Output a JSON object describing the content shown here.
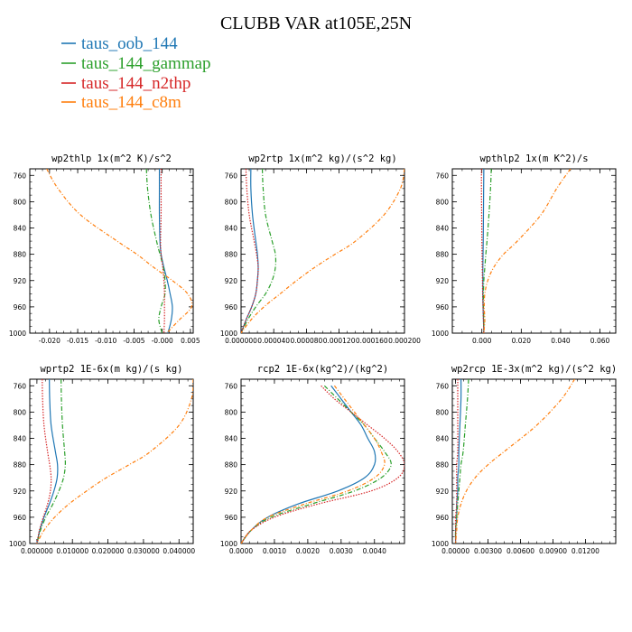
{
  "figure_title": "CLUBB VAR at105E,25N",
  "legend": [
    {
      "name": "taus_oob_144",
      "color": "#1f77b4"
    },
    {
      "name": "taus_144_gammap",
      "color": "#2ca02c"
    },
    {
      "name": "taus_144_n2thp",
      "color": "#d62728"
    },
    {
      "name": "taus_144_c8m",
      "color": "#ff7f0e"
    }
  ],
  "chart_data": [
    {
      "type": "line",
      "title": "wp2thlp  1x(m^2 K)/s^2",
      "xlim": [
        -0.0235,
        0.0055
      ],
      "xticks": [
        -0.02,
        -0.015,
        -0.01,
        -0.005,
        0.0,
        0.005
      ],
      "xticklabels": [
        "-0.020",
        "-0.015",
        "-0.010",
        "-0.005",
        "-0.000",
        "0.005"
      ],
      "ylim": [
        1000,
        750
      ],
      "yticks": [
        760,
        800,
        840,
        880,
        920,
        960,
        1000
      ],
      "y": [
        750,
        780,
        820,
        860,
        880,
        900,
        920,
        940,
        960,
        980,
        1000
      ],
      "series": [
        {
          "name": "taus_oob_144",
          "values": [
            -0.0005,
            -0.0005,
            -0.0005,
            -0.0004,
            -0.0002,
            0.0003,
            0.0009,
            0.0014,
            0.0018,
            0.0016,
            0.001
          ]
        },
        {
          "name": "taus_144_gammap",
          "values": [
            -0.0028,
            -0.0026,
            -0.002,
            -0.001,
            -0.0004,
            0.0002,
            0.0005,
            0.0005,
            -0.0002,
            -0.0006,
            0.0
          ]
        },
        {
          "name": "taus_144_n2thp",
          "values": [
            -0.0002,
            -0.0002,
            -0.0002,
            -0.0003,
            -0.0002,
            0.0001,
            0.0003,
            0.0004,
            0.0004,
            0.0004,
            0.0003
          ]
        },
        {
          "name": "taus_144_c8m",
          "values": [
            -0.0205,
            -0.0185,
            -0.0145,
            -0.008,
            -0.0045,
            -0.0015,
            0.0018,
            0.0045,
            0.0052,
            0.003,
            0.0008
          ]
        }
      ]
    },
    {
      "type": "line",
      "title": "wp2rtp  1x(m^2 kg)/(s^2 kg)",
      "xlim": [
        0,
        0.0002
      ],
      "xticks": [
        0.0,
        4e-05,
        8e-05,
        0.00012,
        0.00016,
        0.0002
      ],
      "xticklabels": [
        "0.000000",
        "0.000040",
        "0.000080",
        "0.000120",
        "0.000160",
        "0.000200"
      ],
      "ylim": [
        1000,
        750
      ],
      "yticks": [
        760,
        800,
        840,
        880,
        920,
        960,
        1000
      ],
      "y": [
        750,
        780,
        820,
        860,
        880,
        900,
        920,
        940,
        960,
        980,
        1000
      ],
      "series": [
        {
          "name": "taus_oob_144",
          "values": [
            1.2e-05,
            1.2e-05,
            1.4e-05,
            1.8e-05,
            2e-05,
            2.1e-05,
            2e-05,
            1.8e-05,
            1.3e-05,
            6e-06,
            0.0
          ]
        },
        {
          "name": "taus_144_gammap",
          "values": [
            2.6e-05,
            2.7e-05,
            3e-05,
            3.8e-05,
            4.2e-05,
            4.2e-05,
            3.8e-05,
            3e-05,
            1.8e-05,
            8e-06,
            0.0
          ]
        },
        {
          "name": "taus_144_n2thp",
          "values": [
            6e-06,
            7e-06,
            1e-05,
            1.6e-05,
            1.9e-05,
            2.1e-05,
            2e-05,
            1.8e-05,
            1.3e-05,
            6e-06,
            0.0
          ]
        },
        {
          "name": "taus_144_c8m",
          "values": [
            0.0002,
            0.000195,
            0.000175,
            0.00014,
            0.000115,
            9e-05,
            6.8e-05,
            4.8e-05,
            2.8e-05,
            1.2e-05,
            0.0
          ]
        }
      ]
    },
    {
      "type": "line",
      "title": "wpthlp2  1x(m K^2)/s",
      "xlim": [
        -0.015,
        0.068
      ],
      "xticks": [
        0.0,
        0.02,
        0.04,
        0.06
      ],
      "xticklabels": [
        "0.000",
        "0.020",
        "0.040",
        "0.060"
      ],
      "ylim": [
        1000,
        750
      ],
      "yticks": [
        760,
        800,
        840,
        880,
        920,
        960,
        1000
      ],
      "y": [
        750,
        780,
        820,
        860,
        880,
        900,
        920,
        940,
        960,
        980,
        1000
      ],
      "series": [
        {
          "name": "taus_oob_144",
          "values": [
            0.001,
            0.0009,
            0.0008,
            0.0007,
            0.0006,
            0.0005,
            0.0005,
            0.0005,
            0.0006,
            0.0008,
            0.001
          ]
        },
        {
          "name": "taus_144_gammap",
          "values": [
            0.0048,
            0.0044,
            0.0036,
            0.0026,
            0.002,
            0.0015,
            0.001,
            0.0008,
            0.0008,
            0.001,
            0.001
          ]
        },
        {
          "name": "taus_144_n2thp",
          "values": [
            -0.0002,
            -0.0002,
            -0.0001,
            0.0,
            0.0001,
            0.0002,
            0.0003,
            0.0004,
            0.0006,
            0.0008,
            0.001
          ]
        },
        {
          "name": "taus_144_c8m",
          "values": [
            0.045,
            0.038,
            0.03,
            0.018,
            0.011,
            0.006,
            0.003,
            0.0015,
            0.0012,
            0.0015,
            0.001
          ]
        }
      ]
    },
    {
      "type": "line",
      "title": "wprtp2  1E-6x(m kg)/(s kg)",
      "xlim": [
        -0.002,
        0.044
      ],
      "xticks": [
        0.0,
        0.01,
        0.02,
        0.03,
        0.04
      ],
      "xticklabels": [
        "0.000000",
        "0.010000",
        "0.020000",
        "0.030000",
        "0.040000"
      ],
      "ylim": [
        1000,
        750
      ],
      "yticks": [
        760,
        800,
        840,
        880,
        920,
        960,
        1000
      ],
      "y": [
        750,
        780,
        820,
        860,
        880,
        900,
        920,
        940,
        960,
        980,
        1000
      ],
      "series": [
        {
          "name": "taus_oob_144",
          "values": [
            0.0035,
            0.0036,
            0.004,
            0.0052,
            0.0058,
            0.0057,
            0.0048,
            0.0035,
            0.002,
            0.0008,
            0.0
          ]
        },
        {
          "name": "taus_144_gammap",
          "values": [
            0.0068,
            0.0069,
            0.0072,
            0.0078,
            0.008,
            0.0075,
            0.0062,
            0.0045,
            0.0025,
            0.001,
            0.0
          ]
        },
        {
          "name": "taus_144_n2thp",
          "values": [
            0.0015,
            0.0016,
            0.002,
            0.003,
            0.0036,
            0.004,
            0.0038,
            0.003,
            0.0018,
            0.0007,
            0.0
          ]
        },
        {
          "name": "taus_144_c8m",
          "values": [
            0.044,
            0.0435,
            0.04,
            0.032,
            0.026,
            0.0195,
            0.014,
            0.009,
            0.005,
            0.002,
            0.0
          ]
        }
      ]
    },
    {
      "type": "line",
      "title": "rcp2  1E-6x(kg^2)/(kg^2)",
      "xlim": [
        0,
        0.0049
      ],
      "xticks": [
        0.0,
        0.001,
        0.002,
        0.003,
        0.004
      ],
      "xticklabels": [
        "0.0000",
        "0.0010",
        "0.0020",
        "0.0030",
        "0.0040"
      ],
      "ylim": [
        1000,
        750
      ],
      "yticks": [
        760,
        800,
        840,
        880,
        920,
        960,
        1000
      ],
      "y": [
        760,
        780,
        800,
        820,
        840,
        860,
        880,
        900,
        920,
        940,
        960,
        980,
        1000
      ],
      "series": [
        {
          "name": "taus_oob_144",
          "values": [
            0.0027,
            0.003,
            0.0033,
            0.0036,
            0.0038,
            0.004,
            0.004,
            0.0037,
            0.0029,
            0.0017,
            0.0008,
            0.0003,
            0.0
          ]
        },
        {
          "name": "taus_144_gammap",
          "values": [
            0.0025,
            0.0029,
            0.0033,
            0.0037,
            0.004,
            0.0043,
            0.0045,
            0.0042,
            0.0034,
            0.0021,
            0.0009,
            0.0003,
            0.0
          ]
        },
        {
          "name": "taus_144_n2thp",
          "values": [
            0.0024,
            0.0028,
            0.0033,
            0.0038,
            0.0043,
            0.0047,
            0.0049,
            0.0047,
            0.0039,
            0.0023,
            0.001,
            0.0003,
            0.0
          ]
        },
        {
          "name": "taus_144_c8m",
          "values": [
            0.0028,
            0.0031,
            0.0034,
            0.0037,
            0.004,
            0.0042,
            0.0043,
            0.004,
            0.0032,
            0.0019,
            0.0008,
            0.0003,
            0.0
          ]
        }
      ]
    },
    {
      "type": "line",
      "title": "wp2rcp  1E-3x(m^2 kg)/(s^2 kg)",
      "xlim": [
        -0.0003,
        0.0148
      ],
      "xticks": [
        0.0,
        0.003,
        0.006,
        0.009,
        0.012
      ],
      "xticklabels": [
        "0.00000",
        "0.00300",
        "0.00600",
        "0.00900",
        "0.01200"
      ],
      "ylim": [
        1000,
        750
      ],
      "yticks": [
        760,
        800,
        840,
        880,
        920,
        960,
        1000
      ],
      "y": [
        750,
        780,
        820,
        860,
        880,
        900,
        920,
        940,
        960,
        980,
        1000
      ],
      "series": [
        {
          "name": "taus_oob_144",
          "values": [
            0.0005,
            0.0005,
            0.0004,
            0.0003,
            0.0003,
            0.0002,
            0.0002,
            0.0001,
            0.0001,
            0.0,
            0.0
          ]
        },
        {
          "name": "taus_144_gammap",
          "values": [
            0.0012,
            0.0011,
            0.0009,
            0.0007,
            0.0005,
            0.0004,
            0.0003,
            0.0002,
            0.0001,
            0.0,
            0.0
          ]
        },
        {
          "name": "taus_144_n2thp",
          "values": [
            0.0002,
            0.0002,
            0.0002,
            0.0002,
            0.0001,
            0.0001,
            0.0001,
            0.0001,
            0.0,
            0.0,
            0.0
          ]
        },
        {
          "name": "taus_144_c8m",
          "values": [
            0.011,
            0.0098,
            0.0075,
            0.0045,
            0.003,
            0.0018,
            0.001,
            0.0005,
            0.0002,
            0.0001,
            0.0
          ]
        }
      ]
    }
  ]
}
